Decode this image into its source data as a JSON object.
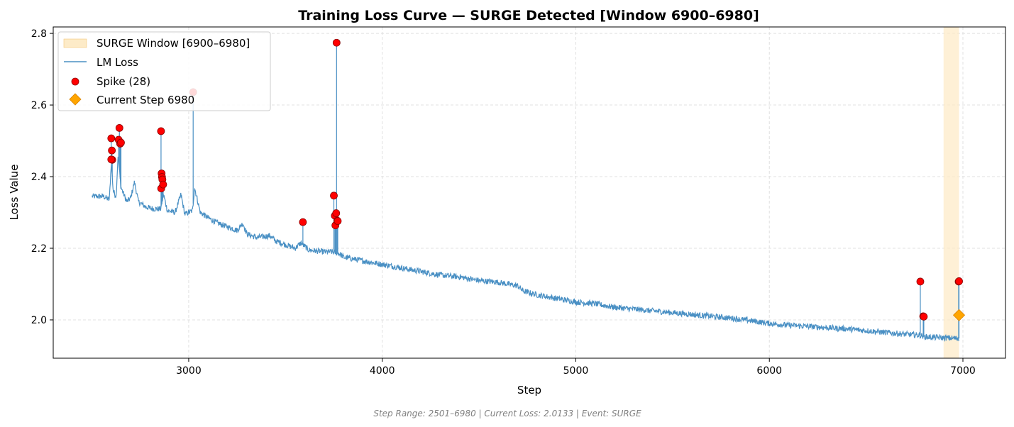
{
  "chart_data": {
    "type": "line",
    "title": "Training Loss Curve — SURGE Detected [Window 6900–6980]",
    "xlabel": "Step",
    "ylabel": "Loss Value",
    "xlim": [
      2300,
      7220
    ],
    "ylim": [
      1.893,
      2.818
    ],
    "xticks": [
      3000,
      4000,
      5000,
      6000,
      7000
    ],
    "yticks": [
      2.0,
      2.2,
      2.4,
      2.6,
      2.8
    ],
    "grid": true,
    "legend_position": "top-left",
    "footer": "Step Range: 2501–6980 | Current Loss: 2.0133 | Event: SURGE",
    "surge_window": {
      "label": "SURGE Window [6900–6980]",
      "start": 6900,
      "end": 6980
    },
    "series": [
      {
        "name": "LM Loss",
        "anchors": [
          [
            2501,
            2.345
          ],
          [
            2560,
            2.345
          ],
          [
            2590,
            2.335
          ],
          [
            2600,
            2.44
          ],
          [
            2610,
            2.36
          ],
          [
            2625,
            2.345
          ],
          [
            2635,
            2.46
          ],
          [
            2650,
            2.37
          ],
          [
            2680,
            2.33
          ],
          [
            2700,
            2.34
          ],
          [
            2720,
            2.385
          ],
          [
            2740,
            2.33
          ],
          [
            2780,
            2.315
          ],
          [
            2820,
            2.31
          ],
          [
            2855,
            2.31
          ],
          [
            2870,
            2.35
          ],
          [
            2890,
            2.305
          ],
          [
            2930,
            2.3
          ],
          [
            2960,
            2.35
          ],
          [
            2980,
            2.295
          ],
          [
            3020,
            2.305
          ],
          [
            3030,
            2.37
          ],
          [
            3060,
            2.3
          ],
          [
            3100,
            2.285
          ],
          [
            3150,
            2.27
          ],
          [
            3200,
            2.26
          ],
          [
            3250,
            2.25
          ],
          [
            3280,
            2.27
          ],
          [
            3300,
            2.24
          ],
          [
            3350,
            2.23
          ],
          [
            3420,
            2.235
          ],
          [
            3450,
            2.22
          ],
          [
            3500,
            2.21
          ],
          [
            3550,
            2.2
          ],
          [
            3580,
            2.215
          ],
          [
            3620,
            2.195
          ],
          [
            3700,
            2.19
          ],
          [
            3740,
            2.19
          ],
          [
            3780,
            2.185
          ],
          [
            3800,
            2.175
          ],
          [
            3900,
            2.165
          ],
          [
            4000,
            2.155
          ],
          [
            4100,
            2.145
          ],
          [
            4200,
            2.135
          ],
          [
            4300,
            2.125
          ],
          [
            4400,
            2.12
          ],
          [
            4500,
            2.11
          ],
          [
            4600,
            2.105
          ],
          [
            4650,
            2.1
          ],
          [
            4700,
            2.095
          ],
          [
            4730,
            2.08
          ],
          [
            4800,
            2.07
          ],
          [
            4900,
            2.06
          ],
          [
            5000,
            2.05
          ],
          [
            5100,
            2.045
          ],
          [
            5200,
            2.035
          ],
          [
            5300,
            2.03
          ],
          [
            5400,
            2.025
          ],
          [
            5500,
            2.02
          ],
          [
            5600,
            2.015
          ],
          [
            5700,
            2.01
          ],
          [
            5800,
            2.005
          ],
          [
            5900,
            1.998
          ],
          [
            6000,
            1.99
          ],
          [
            6100,
            1.985
          ],
          [
            6200,
            1.982
          ],
          [
            6300,
            1.978
          ],
          [
            6400,
            1.975
          ],
          [
            6500,
            1.97
          ],
          [
            6600,
            1.965
          ],
          [
            6700,
            1.96
          ],
          [
            6780,
            1.957
          ],
          [
            6800,
            1.953
          ],
          [
            6900,
            1.95
          ],
          [
            6980,
            1.948
          ]
        ]
      },
      {
        "name": "Spike (28)",
        "points": [
          [
            2600,
            2.507
          ],
          [
            2603,
            2.473
          ],
          [
            2605,
            2.447
          ],
          [
            2600,
            2.448
          ],
          [
            2638,
            2.503
          ],
          [
            2642,
            2.536
          ],
          [
            2646,
            2.492
          ],
          [
            2650,
            2.495
          ],
          [
            2857,
            2.527
          ],
          [
            2858,
            2.367
          ],
          [
            2860,
            2.409
          ],
          [
            2862,
            2.399
          ],
          [
            2864,
            2.392
          ],
          [
            2868,
            2.378
          ],
          [
            3023,
            2.636
          ],
          [
            3590,
            2.273
          ],
          [
            3750,
            2.347
          ],
          [
            3755,
            2.291
          ],
          [
            3758,
            2.264
          ],
          [
            3762,
            2.298
          ],
          [
            3764,
            2.774
          ],
          [
            3768,
            2.277
          ],
          [
            3770,
            2.276
          ],
          [
            6780,
            2.107
          ],
          [
            6795,
            2.01
          ],
          [
            6798,
            2.009
          ],
          [
            6978,
            2.107
          ],
          [
            6980,
            2.108
          ]
        ]
      }
    ],
    "current_step": {
      "label": "Current Step 6980",
      "step": 6980,
      "loss": 2.0133
    }
  },
  "colors": {
    "line": "#4a90c4",
    "spike": "#ff0000",
    "spike_edge": "#8b0000",
    "current": "#ffa500",
    "current_edge": "#d98200",
    "surge_fill": "#fdebc8"
  }
}
